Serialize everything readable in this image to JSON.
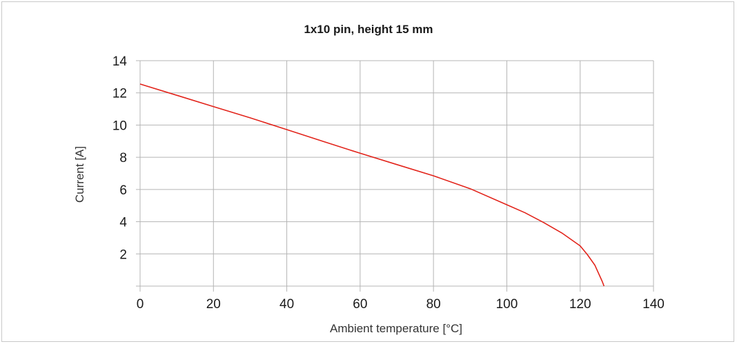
{
  "chart_data": {
    "type": "line",
    "title": "1x10 pin, height 15 mm",
    "xlabel": "Ambient temperature [°C]",
    "ylabel": "Current [A]",
    "xlim": [
      0,
      140
    ],
    "ylim": [
      0,
      14
    ],
    "x_ticks": [
      0,
      20,
      40,
      60,
      80,
      100,
      120,
      140
    ],
    "x_tick_labels": [
      "0",
      "20",
      "40",
      "60",
      "80",
      "100",
      "120",
      "140"
    ],
    "y_ticks": [
      2,
      4,
      6,
      8,
      10,
      12,
      14
    ],
    "y_tick_labels": [
      "2",
      "4",
      "6",
      "8",
      "10",
      "12",
      "14"
    ],
    "grid": true,
    "series": [
      {
        "color": "#e2231a",
        "x": [
          0,
          10,
          20,
          30,
          40,
          50,
          60,
          70,
          80,
          90,
          100,
          105,
          110,
          115,
          120,
          122,
          124,
          125,
          126,
          126.5
        ],
        "y": [
          12.55,
          11.85,
          11.15,
          10.45,
          9.72,
          8.98,
          8.25,
          7.55,
          6.85,
          6.05,
          5.05,
          4.55,
          3.95,
          3.3,
          2.5,
          1.95,
          1.3,
          0.8,
          0.3,
          0
        ]
      }
    ]
  }
}
